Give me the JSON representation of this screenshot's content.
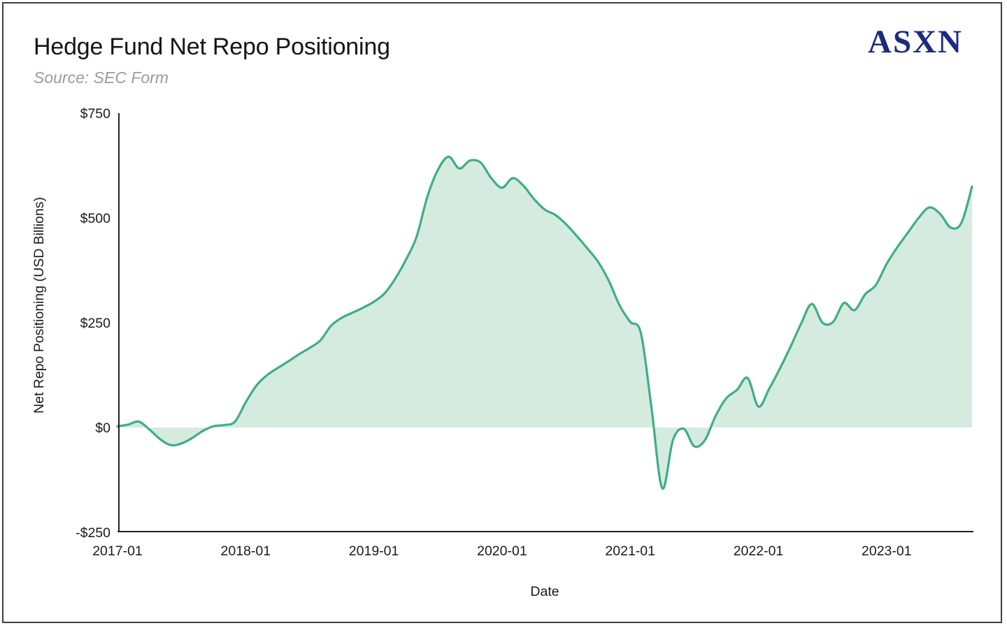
{
  "header": {
    "title": "Hedge Fund Net Repo Positioning",
    "source": "Source: SEC Form",
    "logo": "ASXN"
  },
  "chart_data": {
    "type": "area",
    "title": "Hedge Fund Net Repo Positioning",
    "subtitle": "Source: SEC Form",
    "xlabel": "Date",
    "ylabel": "Net Repo Positioning (USD Billions)",
    "ylim": [
      -250,
      750
    ],
    "fill_baseline": 0,
    "grid": false,
    "legend": "none",
    "series_name": "Net Repo Positioning (USD Billions)",
    "y_ticks": [
      {
        "value": 750,
        "label": "$750"
      },
      {
        "value": 500,
        "label": "$500"
      },
      {
        "value": 250,
        "label": "$250"
      },
      {
        "value": 0,
        "label": "$0"
      },
      {
        "value": -250,
        "label": "-$250"
      }
    ],
    "x_tick_labels": [
      "2017-01",
      "2018-01",
      "2019-01",
      "2020-01",
      "2021-01",
      "2022-01",
      "2023-01"
    ],
    "x": [
      "2017-01",
      "2017-02",
      "2017-03",
      "2017-04",
      "2017-05",
      "2017-06",
      "2017-07",
      "2017-08",
      "2017-09",
      "2017-10",
      "2017-11",
      "2017-12",
      "2018-01",
      "2018-02",
      "2018-03",
      "2018-04",
      "2018-05",
      "2018-06",
      "2018-07",
      "2018-08",
      "2018-09",
      "2018-10",
      "2018-11",
      "2018-12",
      "2019-01",
      "2019-02",
      "2019-03",
      "2019-04",
      "2019-05",
      "2019-06",
      "2019-07",
      "2019-08",
      "2019-09",
      "2019-10",
      "2019-11",
      "2019-12",
      "2020-01",
      "2020-02",
      "2020-03",
      "2020-04",
      "2020-05",
      "2020-06",
      "2020-07",
      "2020-08",
      "2020-09",
      "2020-10",
      "2020-11",
      "2020-12",
      "2021-01",
      "2021-02",
      "2021-03",
      "2021-04",
      "2021-05",
      "2021-06",
      "2021-07",
      "2021-08",
      "2021-09",
      "2021-10",
      "2021-11",
      "2021-12",
      "2022-01",
      "2022-02",
      "2022-03",
      "2022-04",
      "2022-05",
      "2022-06",
      "2022-07",
      "2022-08",
      "2022-09",
      "2022-10",
      "2022-11",
      "2022-12",
      "2023-01",
      "2023-02",
      "2023-03",
      "2023-04",
      "2023-05",
      "2023-06",
      "2023-07",
      "2023-08",
      "2023-09"
    ],
    "values": [
      3,
      7,
      14,
      -5,
      -28,
      -42,
      -38,
      -25,
      -8,
      3,
      6,
      14,
      60,
      100,
      125,
      142,
      158,
      175,
      190,
      208,
      243,
      262,
      274,
      286,
      300,
      320,
      355,
      400,
      455,
      550,
      615,
      646,
      618,
      637,
      632,
      595,
      572,
      595,
      577,
      545,
      520,
      507,
      485,
      457,
      427,
      395,
      350,
      292,
      252,
      225,
      45,
      -145,
      -30,
      -3,
      -45,
      -30,
      28,
      70,
      90,
      118,
      50,
      92,
      140,
      192,
      248,
      295,
      250,
      252,
      297,
      280,
      318,
      340,
      390,
      430,
      465,
      500,
      525,
      510,
      477,
      488,
      575
    ],
    "colors": {
      "line": "#3fae85",
      "fill": "#d5ebe0",
      "axis": "#222222",
      "tick_text": "#1a1a1a",
      "title_text": "#151515",
      "subtitle_text": "#9b9b9b",
      "logo_text": "#1b2b7d"
    }
  }
}
